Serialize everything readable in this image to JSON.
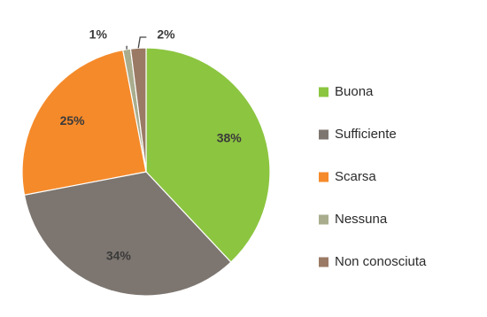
{
  "chart_data": {
    "type": "pie",
    "title": "",
    "slices": [
      {
        "label": "Buona",
        "value": 38,
        "display": "38%",
        "color": "#8cc540"
      },
      {
        "label": "Sufficiente",
        "value": 34,
        "display": "34%",
        "color": "#7d7670"
      },
      {
        "label": "Scarsa",
        "value": 25,
        "display": "25%",
        "color": "#f58a2a"
      },
      {
        "label": "Nessuna",
        "value": 1,
        "display": "1%",
        "color": "#a9ad8e"
      },
      {
        "label": "Non conosciuta",
        "value": 2,
        "display": "2%",
        "color": "#9a7a64"
      }
    ],
    "legend_position": "right"
  }
}
